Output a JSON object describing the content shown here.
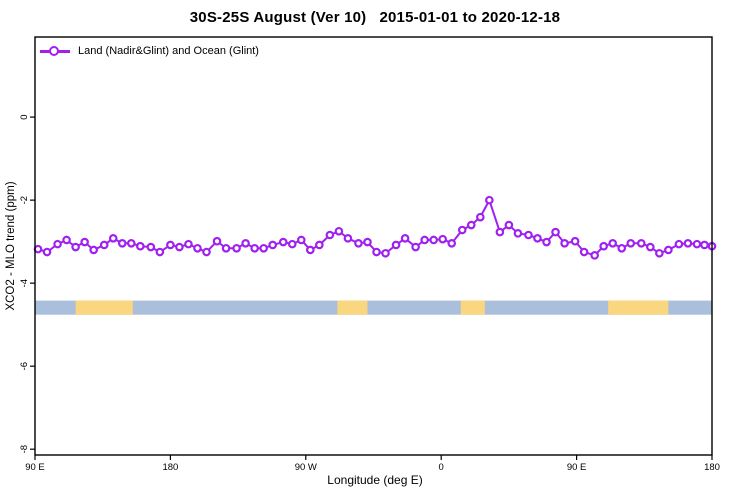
{
  "header": {
    "title": "30S-25S August (Ver 10)   2015-01-01 to 2020-12-18"
  },
  "legend": {
    "label": "Land (Nadir&Glint) and Ocean (Glint)",
    "color": "#A020F0"
  },
  "axes": {
    "x_label": "Longitude (deg E)",
    "y_label": "XCO2 - MLO trend (ppm)"
  },
  "chart_data": {
    "type": "line",
    "title": "30S-25S August (Ver 10)   2015-01-01 to 2020-12-18",
    "xlabel": "Longitude (deg E)",
    "ylabel": "XCO2 - MLO trend (ppm)",
    "grid": false,
    "legend_position": "top-left-inside",
    "xlim": [
      90,
      540
    ],
    "ylim": [
      -8.14,
      1.93
    ],
    "x_ticks": [
      {
        "value": 90,
        "label": "90 E"
      },
      {
        "value": 180,
        "label": "180"
      },
      {
        "value": 270,
        "label": "90 W"
      },
      {
        "value": 360,
        "label": "0"
      },
      {
        "value": 450,
        "label": "90 E"
      },
      {
        "value": 540,
        "label": "180"
      }
    ],
    "y_ticks": [
      {
        "value": 0,
        "label": "0"
      },
      {
        "value": -2,
        "label": "-2"
      },
      {
        "value": -4,
        "label": "-4"
      },
      {
        "value": -6,
        "label": "-6"
      },
      {
        "value": -8,
        "label": "-8"
      }
    ],
    "series": [
      {
        "name": "Land (Nadir&Glint) and Ocean (Glint)",
        "color": "#A020F0",
        "marker": "open-circle",
        "x": [
          92,
          98,
          105,
          111,
          117,
          123,
          129,
          136,
          142,
          148,
          154,
          160,
          167,
          173,
          180,
          186,
          192,
          198,
          204,
          211,
          217,
          224,
          230,
          236,
          242,
          248,
          255,
          261,
          267,
          273,
          279,
          286,
          292,
          298,
          305,
          311,
          317,
          323,
          330,
          336,
          343,
          349,
          355,
          361,
          367,
          374,
          380,
          386,
          392,
          399,
          405,
          411,
          418,
          424,
          430,
          436,
          442,
          449,
          455,
          462,
          468,
          474,
          480,
          486,
          493,
          499,
          505,
          511,
          518,
          524,
          530,
          535,
          540
        ],
        "y": [
          -3.18,
          -3.25,
          -3.06,
          -2.96,
          -3.13,
          -3.01,
          -3.2,
          -3.08,
          -2.92,
          -3.04,
          -3.04,
          -3.11,
          -3.13,
          -3.25,
          -3.08,
          -3.13,
          -3.06,
          -3.16,
          -3.25,
          -2.99,
          -3.16,
          -3.16,
          -3.04,
          -3.16,
          -3.16,
          -3.08,
          -3.01,
          -3.06,
          -2.96,
          -3.2,
          -3.08,
          -2.84,
          -2.75,
          -2.92,
          -3.04,
          -3.01,
          -3.25,
          -3.28,
          -3.08,
          -2.92,
          -3.13,
          -2.96,
          -2.96,
          -2.94,
          -3.04,
          -2.72,
          -2.6,
          -2.41,
          -2.0,
          -2.77,
          -2.6,
          -2.8,
          -2.84,
          -2.92,
          -3.01,
          -2.77,
          -3.04,
          -2.99,
          -3.25,
          -3.33,
          -3.11,
          -3.04,
          -3.16,
          -3.04,
          -3.04,
          -3.13,
          -3.28,
          -3.2,
          -3.06,
          -3.04,
          -3.06,
          -3.08,
          -3.11
        ]
      }
    ],
    "surface_band": {
      "y_top": -4.42,
      "y_bottom": -4.76,
      "range": [
        90,
        540
      ],
      "ocean_color": "#A9BFDC",
      "land_color": "#FAD67E",
      "land_segments": [
        [
          117,
          155
        ],
        [
          291,
          311
        ],
        [
          373,
          389
        ],
        [
          471,
          511
        ]
      ]
    }
  }
}
